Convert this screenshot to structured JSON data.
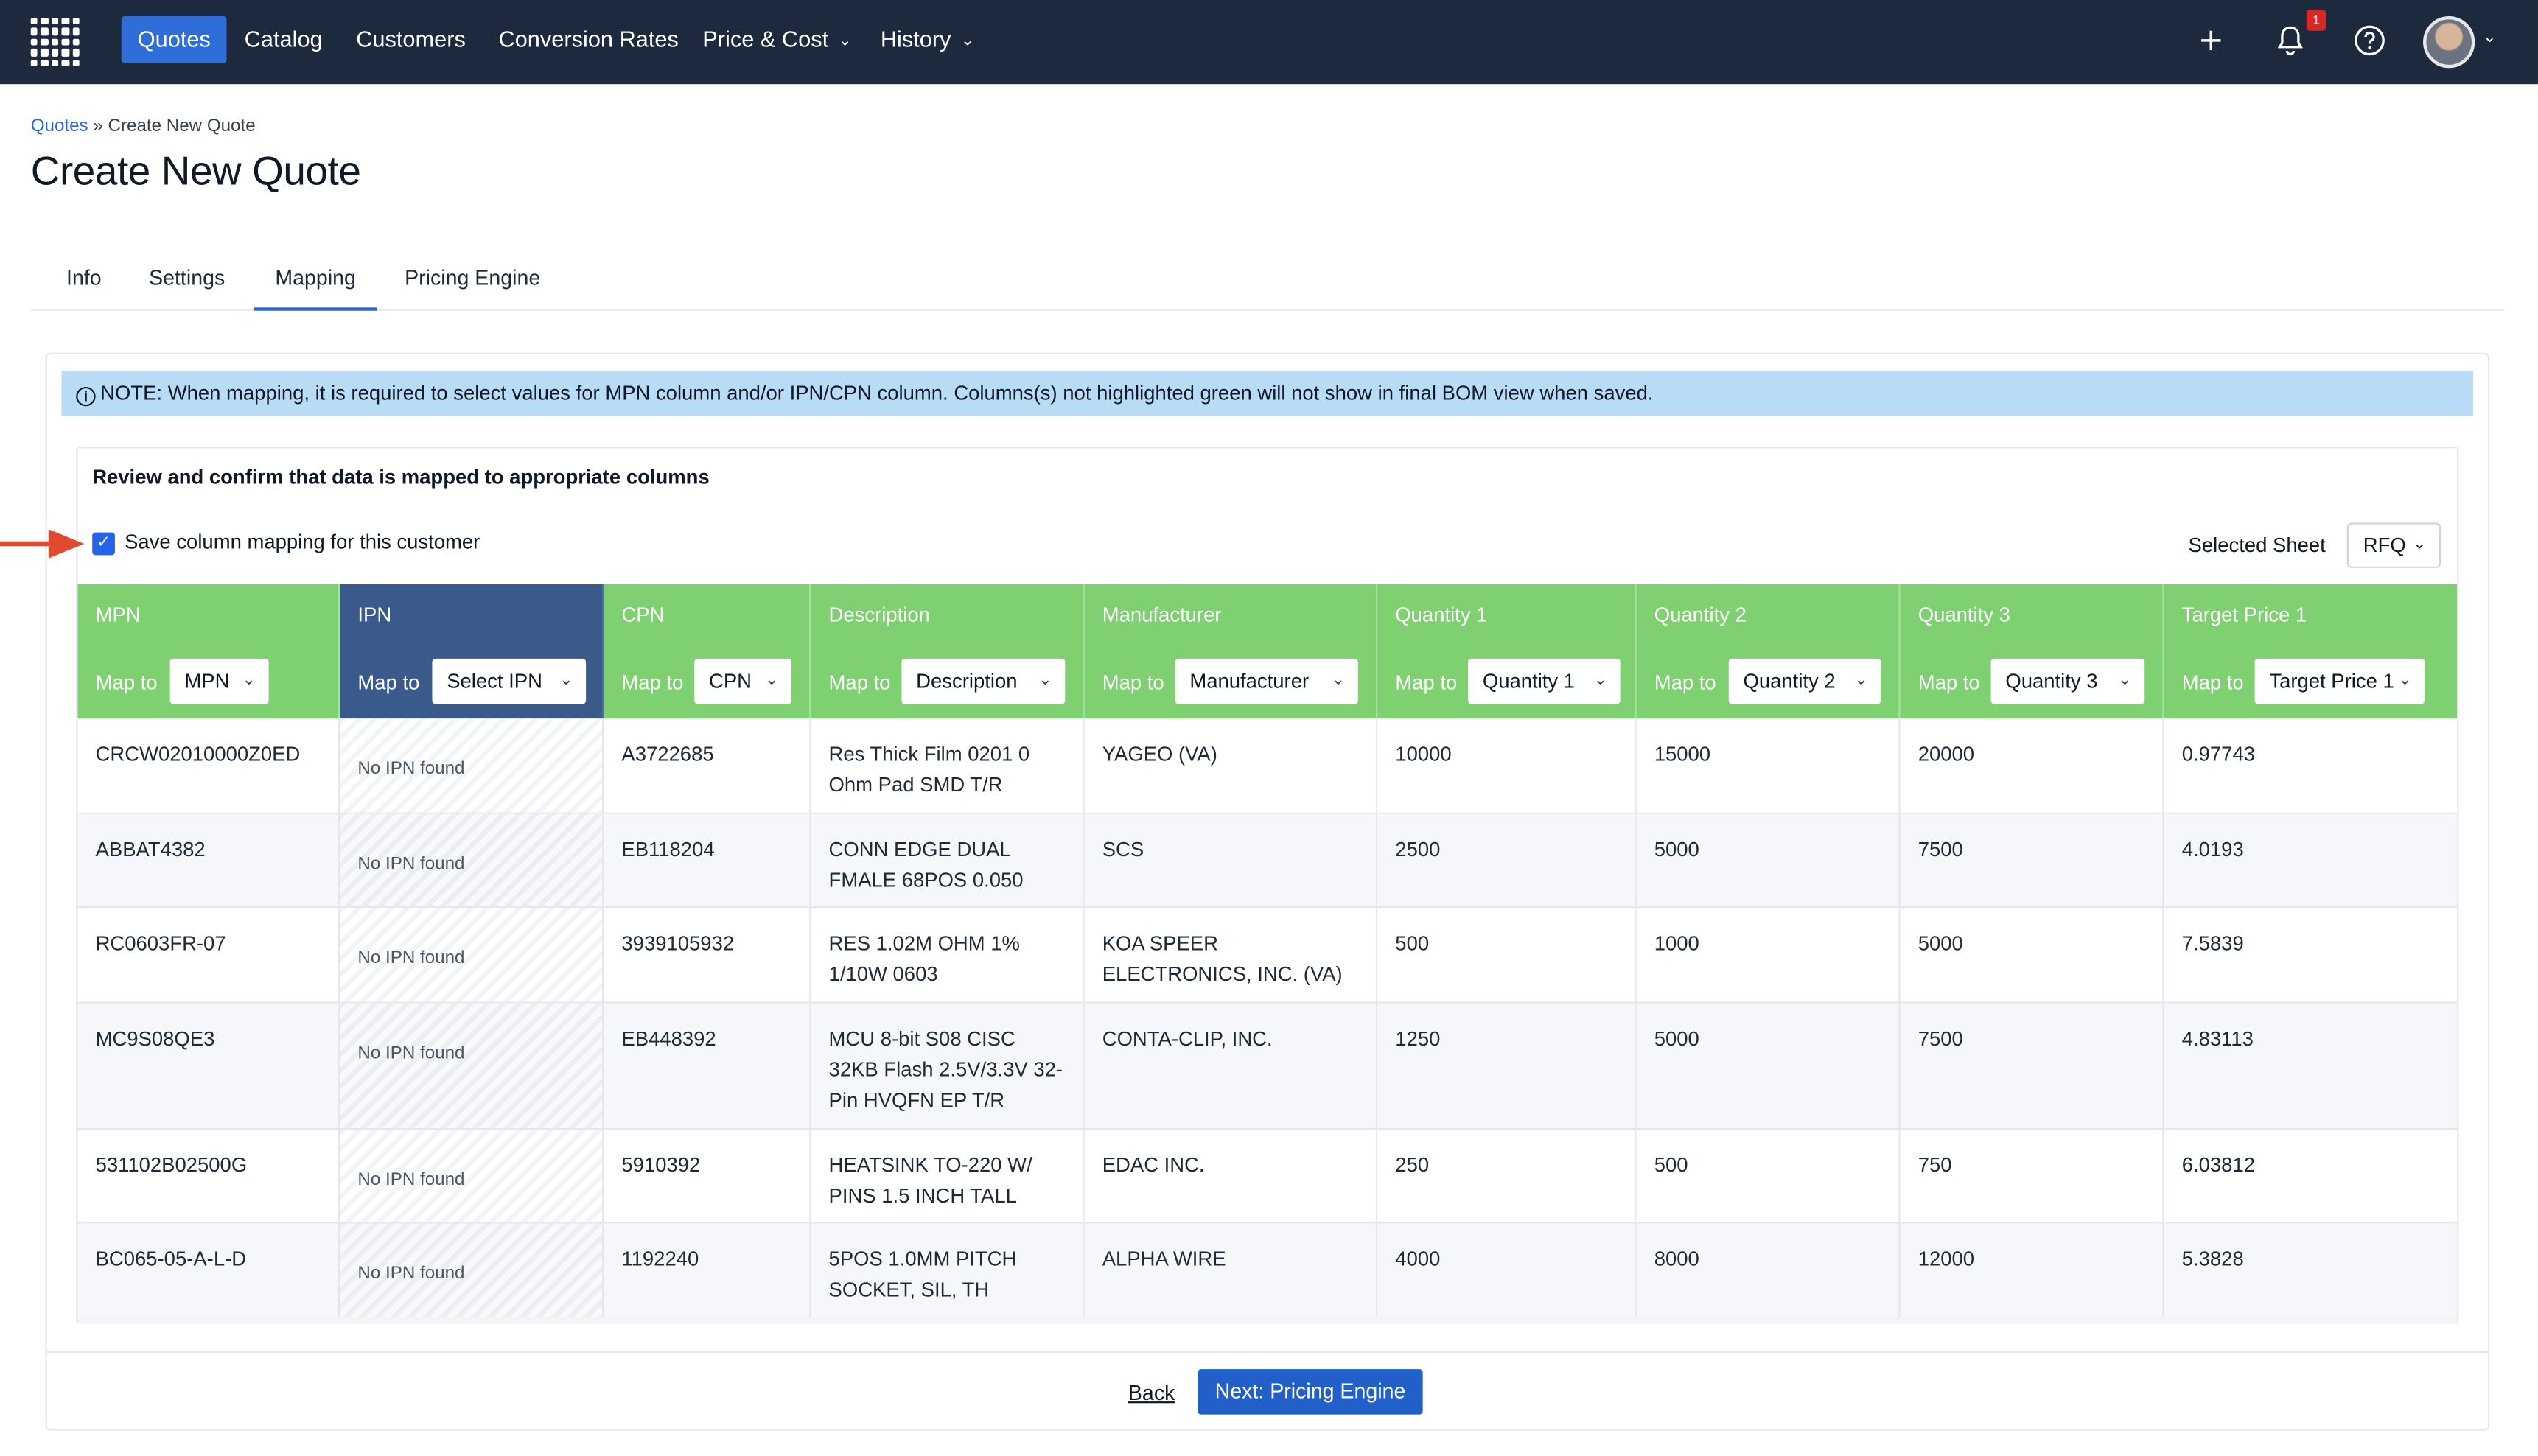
{
  "nav": {
    "items": [
      {
        "label": "Quotes",
        "active": true
      },
      {
        "label": "Catalog"
      },
      {
        "label": "Customers"
      },
      {
        "label": "Conversion Rates"
      },
      {
        "label": "Price & Cost",
        "dropdown": true
      },
      {
        "label": "History",
        "dropdown": true
      }
    ],
    "notification_count": "1",
    "icons": [
      "grid-logo-icon",
      "plus-icon",
      "bell-icon",
      "help-icon",
      "avatar"
    ]
  },
  "breadcrumb": {
    "root": "Quotes",
    "separator": "»",
    "current": "Create New Quote"
  },
  "page_title": "Create New Quote",
  "tabs": [
    {
      "label": "Info"
    },
    {
      "label": "Settings"
    },
    {
      "label": "Mapping",
      "active": true
    },
    {
      "label": "Pricing Engine"
    }
  ],
  "note": "NOTE: When mapping, it is required to select values for MPN column and/or IPN/CPN column. Columns(s) not highlighted green will not show in final BOM view when saved.",
  "review_title": "Review and confirm that data is mapped to appropriate columns",
  "save_mapping": {
    "label": "Save column mapping for this customer",
    "checked": true
  },
  "sheet": {
    "label": "Selected Sheet",
    "value": "RFQ"
  },
  "map_to_label": "Map to",
  "columns": [
    {
      "name": "MPN",
      "mapped": "MPN"
    },
    {
      "name": "IPN",
      "mapped": "Select IPN"
    },
    {
      "name": "CPN",
      "mapped": "CPN"
    },
    {
      "name": "Description",
      "mapped": "Description"
    },
    {
      "name": "Manufacturer",
      "mapped": "Manufacturer"
    },
    {
      "name": "Quantity 1",
      "mapped": "Quantity 1"
    },
    {
      "name": "Quantity 2",
      "mapped": "Quantity 2"
    },
    {
      "name": "Quantity 3",
      "mapped": "Quantity 3"
    },
    {
      "name": "Target Price 1",
      "mapped": "Target Price 1"
    }
  ],
  "rows": [
    [
      "CRCW02010000Z0ED",
      "No IPN found",
      "A3722685",
      "Res Thick Film 0201 0 Ohm Pad SMD T/R",
      "YAGEO (VA)",
      "10000",
      "15000",
      "20000",
      "0.97743"
    ],
    [
      "ABBAT4382",
      "No IPN found",
      "EB118204",
      "CONN EDGE DUAL FMALE 68POS 0.050",
      "SCS",
      "2500",
      "5000",
      "7500",
      "4.0193"
    ],
    [
      "RC0603FR-07",
      "No IPN found",
      "3939105932",
      "RES 1.02M OHM 1% 1/10W 0603",
      "KOA SPEER ELECTRONICS, INC. (VA)",
      "500",
      "1000",
      "5000",
      "7.5839"
    ],
    [
      "MC9S08QE3",
      "No IPN found",
      "EB448392",
      "MCU 8-bit S08 CISC 32KB Flash 2.5V/3.3V 32-Pin HVQFN EP T/R",
      "CONTA-CLIP, INC.",
      "1250",
      "5000",
      "7500",
      "4.83113"
    ],
    [
      "531102B02500G",
      "No IPN found",
      "5910392",
      "HEATSINK TO-220 W/ PINS 1.5 INCH TALL",
      "EDAC INC.",
      "250",
      "500",
      "750",
      "6.03812"
    ],
    [
      "BC065-05-A-L-D",
      "No IPN found",
      "1192240",
      "5POS 1.0MM PITCH SOCKET, SIL, TH",
      "ALPHA WIRE",
      "4000",
      "8000",
      "12000",
      "5.3828"
    ]
  ],
  "footer": {
    "back": "Back",
    "next": "Next: Pricing Engine"
  },
  "colors": {
    "nav_bg": "#1d2a3d",
    "accent": "#2563eb",
    "mapped_green": "#7ed071",
    "unmapped_blue": "#3a5a8c",
    "note_bg": "#b8dcf5",
    "arrow": "#e04a2f"
  }
}
